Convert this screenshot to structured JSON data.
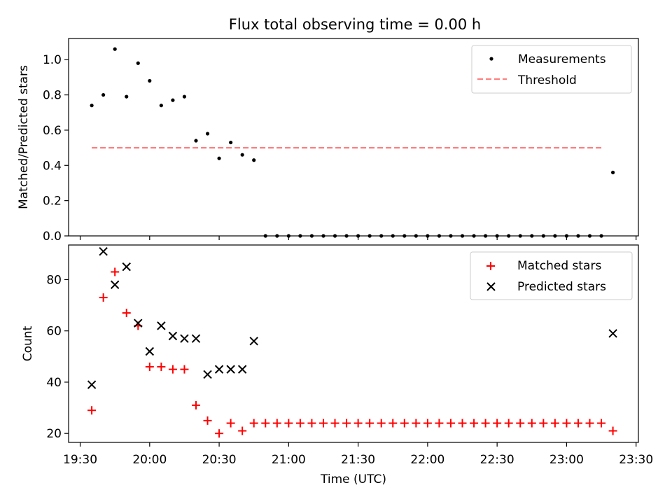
{
  "title": "Flux total observing time = 0.00 h",
  "colors": {
    "measurement": "#000000",
    "threshold": "#ff7f7f",
    "matched": "#ff0000",
    "predicted": "#000000"
  },
  "chart_data": [
    {
      "type": "scatter",
      "ylabel": "Matched/Predicted stars",
      "xlim": [
        1165,
        1411
      ],
      "ylim": [
        0,
        1.12
      ],
      "yticks": [
        0.0,
        0.2,
        0.4,
        0.6,
        0.8,
        1.0
      ],
      "ytick_labels": [
        "0.0",
        "0.2",
        "0.4",
        "0.6",
        "0.8",
        "1.0"
      ],
      "legend": {
        "placement": "top-right",
        "entries": [
          "Measurements",
          "Threshold"
        ]
      },
      "series": [
        {
          "name": "Measurements",
          "x": [
            1175,
            1180,
            1185,
            1190,
            1195,
            1200,
            1205,
            1210,
            1215,
            1220,
            1225,
            1230,
            1235,
            1240,
            1245,
            1250,
            1255,
            1260,
            1265,
            1270,
            1275,
            1280,
            1285,
            1290,
            1295,
            1300,
            1305,
            1310,
            1315,
            1320,
            1325,
            1330,
            1335,
            1340,
            1345,
            1350,
            1355,
            1360,
            1365,
            1370,
            1375,
            1380,
            1385,
            1390,
            1395,
            1400
          ],
          "y": [
            0.74,
            0.8,
            1.06,
            0.79,
            0.98,
            0.88,
            0.74,
            0.77,
            0.79,
            0.54,
            0.58,
            0.44,
            0.53,
            0.46,
            0.43,
            0,
            0,
            0,
            0,
            0,
            0,
            0,
            0,
            0,
            0,
            0,
            0,
            0,
            0,
            0,
            0,
            0,
            0,
            0,
            0,
            0,
            0,
            0,
            0,
            0,
            0,
            0,
            0,
            0,
            0,
            0.36
          ]
        }
      ],
      "threshold": {
        "name": "Threshold",
        "y": 0.5,
        "x": [
          1175,
          1395
        ]
      }
    },
    {
      "type": "scatter",
      "xlabel": "Time (UTC)",
      "ylabel": "Count",
      "xlim": [
        1165,
        1411
      ],
      "ylim": [
        16.5,
        93.5
      ],
      "yticks": [
        20,
        40,
        60,
        80
      ],
      "ytick_labels": [
        "20",
        "40",
        "60",
        "80"
      ],
      "xticks": [
        1170,
        1200,
        1230,
        1260,
        1290,
        1320,
        1350,
        1380,
        1410
      ],
      "xtick_labels": [
        "19:30",
        "20:00",
        "20:30",
        "21:00",
        "21:30",
        "22:00",
        "22:30",
        "23:00",
        "23:30"
      ],
      "legend": {
        "placement": "top-right",
        "entries": [
          "Matched stars",
          "Predicted stars"
        ]
      },
      "series": [
        {
          "name": "Matched stars",
          "x": [
            1175,
            1180,
            1185,
            1190,
            1195,
            1200,
            1205,
            1210,
            1215,
            1220,
            1225,
            1230,
            1235,
            1240,
            1245,
            1250,
            1255,
            1260,
            1265,
            1270,
            1275,
            1280,
            1285,
            1290,
            1295,
            1300,
            1305,
            1310,
            1315,
            1320,
            1325,
            1330,
            1335,
            1340,
            1345,
            1350,
            1355,
            1360,
            1365,
            1370,
            1375,
            1380,
            1385,
            1390,
            1395,
            1400
          ],
          "y": [
            29,
            73,
            83,
            67,
            62,
            46,
            46,
            45,
            45,
            31,
            25,
            20,
            24,
            21,
            24,
            24,
            24,
            24,
            24,
            24,
            24,
            24,
            24,
            24,
            24,
            24,
            24,
            24,
            24,
            24,
            24,
            24,
            24,
            24,
            24,
            24,
            24,
            24,
            24,
            24,
            24,
            24,
            24,
            24,
            24,
            21
          ]
        },
        {
          "name": "Predicted stars",
          "x": [
            1175,
            1180,
            1185,
            1190,
            1195,
            1200,
            1205,
            1210,
            1215,
            1220,
            1225,
            1230,
            1235,
            1240,
            1245,
            1400
          ],
          "y": [
            39,
            91,
            78,
            85,
            63,
            52,
            62,
            58,
            57,
            57,
            43,
            45,
            45,
            45,
            56,
            59
          ]
        }
      ]
    }
  ]
}
